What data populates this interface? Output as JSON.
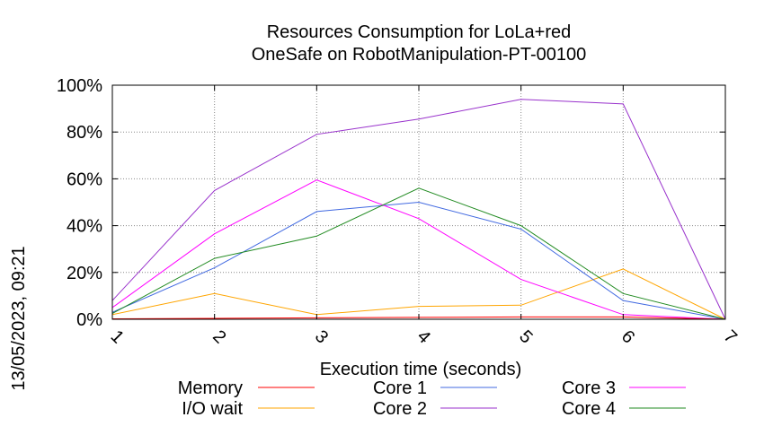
{
  "timestamp": "13/05/2023, 09:21",
  "chart_data": {
    "type": "line",
    "title": "Resources Consumption for LoLa+red",
    "subtitle": "OneSafe on RobotManipulation-PT-00100",
    "xlabel": "Execution time (seconds)",
    "ylabel": "",
    "x": [
      1,
      2,
      3,
      4,
      5,
      6,
      7
    ],
    "xlim": [
      1,
      7
    ],
    "ylim": [
      0,
      100
    ],
    "x_tick_labels": [
      "1",
      "2",
      "3",
      "4",
      "5",
      "6",
      "7"
    ],
    "y_tick_labels": [
      "0%",
      "20%",
      "40%",
      "60%",
      "80%",
      "100%"
    ],
    "y_ticks": [
      0,
      20,
      40,
      60,
      80,
      100
    ],
    "grid": true,
    "legend_placement": "bottom",
    "series": [
      {
        "name": "Memory",
        "color": "#ff0000",
        "values": [
          0.2,
          0.4,
          0.6,
          0.8,
          1.0,
          1.0,
          0
        ]
      },
      {
        "name": "I/O wait",
        "color": "#ffa500",
        "values": [
          2,
          11,
          2,
          5.5,
          6,
          21.5,
          0
        ]
      },
      {
        "name": "Core 1",
        "color": "#4169e1",
        "values": [
          3,
          22,
          46,
          50,
          38.5,
          8,
          0
        ]
      },
      {
        "name": "Core 2",
        "color": "#9932cc",
        "values": [
          8,
          55,
          79,
          85.5,
          94,
          92,
          0
        ]
      },
      {
        "name": "Core 3",
        "color": "#ff00ff",
        "values": [
          5,
          36.5,
          59.5,
          43,
          17,
          2,
          0
        ]
      },
      {
        "name": "Core 4",
        "color": "#228b22",
        "values": [
          2.5,
          26,
          35.5,
          56,
          40,
          11,
          0
        ]
      }
    ]
  }
}
